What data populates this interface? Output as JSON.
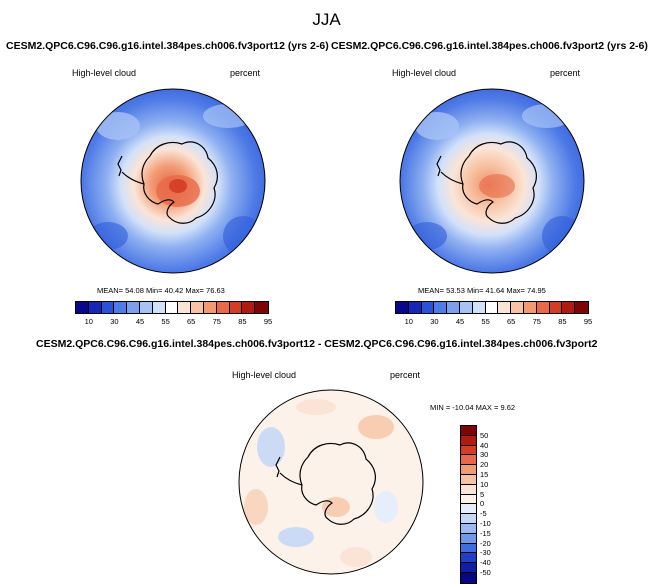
{
  "title": "JJA",
  "panels": [
    {
      "case_title": "CESM2.QPC6.C96.C96.g16.intel.384pes.ch006.fv3port12 (yrs 2-6)",
      "variable": "High-level cloud",
      "units": "percent",
      "stats": "MEAN=  54.08  Min=  40.42  Max=  76.63"
    },
    {
      "case_title": "CESM2.QPC6.C96.C96.g16.intel.384pes.ch006.fv3port2 (yrs 2-6)",
      "variable": "High-level cloud",
      "units": "percent",
      "stats": "MEAN=  53.53  Min=  41.64  Max=  74.95"
    }
  ],
  "diff_panel": {
    "case_title": "CESM2.QPC6.C96.C96.g16.intel.384pes.ch006.fv3port12 - CESM2.QPC6.C96.C96.g16.intel.384pes.ch006.fv3port2",
    "variable": "High-level cloud",
    "units": "percent",
    "stats": "MIN = -10.04 MAX =  9.62"
  },
  "colorbar_top": {
    "labels": [
      "10",
      "30",
      "45",
      "55",
      "65",
      "75",
      "85",
      "95"
    ],
    "colors": [
      "#08088c",
      "#1526b8",
      "#2a52d6",
      "#4f7be6",
      "#7aa0ee",
      "#a7c3f5",
      "#d2e1fa",
      "#ffffff",
      "#fbe4d6",
      "#f7c3a3",
      "#f29a72",
      "#e8694a",
      "#d43d25",
      "#b01a10",
      "#7e0505"
    ]
  },
  "colorbar_diff": {
    "labels": [
      "50",
      "40",
      "30",
      "20",
      "15",
      "10",
      "5",
      "0",
      "-5",
      "-10",
      "-15",
      "-20",
      "-30",
      "-40",
      "-50"
    ],
    "colors": [
      "#7e0505",
      "#b01a10",
      "#d43d25",
      "#e8694a",
      "#f29a72",
      "#f7c3a3",
      "#fbe4d6",
      "#fdf2ea",
      "#e6eefb",
      "#c7d8f6",
      "#9cbaf1",
      "#6f97ea",
      "#3f6de0",
      "#1f3fc7",
      "#0c1fa6",
      "#070782"
    ]
  }
}
